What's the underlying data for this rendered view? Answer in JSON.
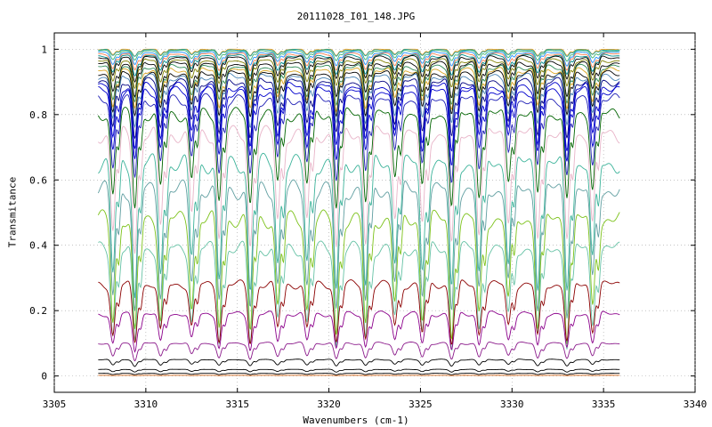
{
  "chart_data": {
    "type": "line",
    "title": "20111028_I01_148.JPG",
    "xlabel": "Wavenumbers (cm-1)",
    "ylabel": "Transmitance",
    "xlim": [
      3305,
      3340
    ],
    "ylim": [
      -0.05,
      1.05
    ],
    "x_ticks": [
      3305,
      3310,
      3315,
      3320,
      3325,
      3330,
      3335,
      3340
    ],
    "x_tick_labels": [
      "3305",
      "3310",
      "3315",
      "3320",
      "3325",
      "3330",
      "3335",
      "3340"
    ],
    "y_ticks": [
      0,
      0.2,
      0.4,
      0.6,
      0.8,
      1
    ],
    "y_tick_labels": [
      "0",
      "0.2",
      "0.4",
      "0.6",
      "0.8",
      "1"
    ],
    "x_range_data": [
      3307.4,
      3335.9
    ],
    "grid": true,
    "legend": "none",
    "absorption_line_centers": [
      3308.2,
      3309.4,
      3310.8,
      3312.5,
      3314.0,
      3315.7,
      3317.2,
      3318.8,
      3320.4,
      3322.0,
      3323.6,
      3325.1,
      3326.7,
      3328.2,
      3329.8,
      3331.4,
      3333.0,
      3334.4
    ],
    "series": [
      {
        "baseline": 1.0,
        "depth": 0.02,
        "color": "#f0a020"
      },
      {
        "baseline": 0.998,
        "depth": 0.02,
        "color": "#20a0a0"
      },
      {
        "baseline": 0.995,
        "depth": 0.03,
        "color": "#3cb371"
      },
      {
        "baseline": 0.99,
        "depth": 0.04,
        "color": "#1e90ff"
      },
      {
        "baseline": 0.985,
        "depth": 0.05,
        "color": "#ff7f50"
      },
      {
        "baseline": 0.98,
        "depth": 0.06,
        "color": "#008b8b"
      },
      {
        "baseline": 0.975,
        "depth": 0.07,
        "color": "#000000"
      },
      {
        "baseline": 0.965,
        "depth": 0.08,
        "color": "#808000"
      },
      {
        "baseline": 0.955,
        "depth": 0.1,
        "color": "#000000"
      },
      {
        "baseline": 0.945,
        "depth": 0.11,
        "color": "#2e8b57"
      },
      {
        "baseline": 0.935,
        "depth": 0.12,
        "color": "#daa520"
      },
      {
        "baseline": 0.925,
        "depth": 0.13,
        "color": "#000000"
      },
      {
        "baseline": 0.915,
        "depth": 0.15,
        "color": "#4682b4"
      },
      {
        "baseline": 0.9,
        "depth": 0.17,
        "color": "#000080"
      },
      {
        "baseline": 0.885,
        "depth": 0.19,
        "color": "#0000cd"
      },
      {
        "baseline": 0.87,
        "depth": 0.21,
        "color": "#0000cd"
      },
      {
        "baseline": 0.845,
        "depth": 0.24,
        "color": "#1c1cb4"
      },
      {
        "baseline": 0.8,
        "depth": 0.28,
        "color": "#006400"
      },
      {
        "baseline": 0.74,
        "depth": 0.35,
        "color": "#e8b4c8"
      },
      {
        "baseline": 0.65,
        "depth": 0.4,
        "color": "#3cb39a"
      },
      {
        "baseline": 0.57,
        "depth": 0.38,
        "color": "#5f9ea0"
      },
      {
        "baseline": 0.48,
        "depth": 0.36,
        "color": "#7cc21a"
      },
      {
        "baseline": 0.39,
        "depth": 0.3,
        "color": "#66c2a5"
      },
      {
        "baseline": 0.28,
        "depth": 0.18,
        "color": "#8b0000"
      },
      {
        "baseline": 0.19,
        "depth": 0.11,
        "color": "#8b008b"
      },
      {
        "baseline": 0.1,
        "depth": 0.05,
        "color": "#8b1a8b"
      },
      {
        "baseline": 0.05,
        "depth": 0.02,
        "color": "#000000"
      },
      {
        "baseline": 0.02,
        "depth": 0.008,
        "color": "#000000"
      },
      {
        "baseline": 0.008,
        "depth": 0.004,
        "color": "#000000"
      },
      {
        "baseline": 0.002,
        "depth": 0.001,
        "color": "#d2691e"
      }
    ]
  }
}
